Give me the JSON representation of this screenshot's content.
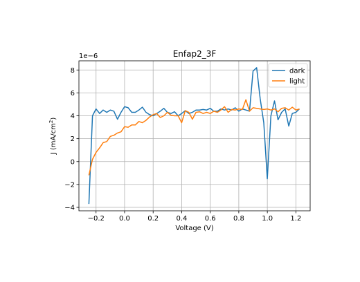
{
  "chart_data": {
    "type": "line",
    "title": "Enfap2_3F",
    "xlabel": "Voltage (V)",
    "ylabel_main": "J (mA/cm",
    "ylabel_sup": "2",
    "ylabel_close": ")",
    "offset_text": "1e−6",
    "xlim": [
      -0.32,
      1.3
    ],
    "ylim": [
      -4.3,
      8.8
    ],
    "xticks": [
      -0.2,
      0.0,
      0.2,
      0.4,
      0.6,
      0.8,
      1.0,
      1.2
    ],
    "xtick_labels": [
      "−0.2",
      "0.0",
      "0.2",
      "0.4",
      "0.6",
      "0.8",
      "1.0",
      "1.2"
    ],
    "yticks": [
      -4,
      -2,
      0,
      2,
      4,
      6,
      8
    ],
    "ytick_labels": [
      "−4",
      "−2",
      "0",
      "2",
      "4",
      "6",
      "8"
    ],
    "grid": true,
    "legend_position": "top-right",
    "series": [
      {
        "name": "dark",
        "color": "#1f77b4",
        "x": [
          -0.25,
          -0.225,
          -0.2,
          -0.175,
          -0.15,
          -0.125,
          -0.1,
          -0.075,
          -0.05,
          -0.025,
          0.0,
          0.025,
          0.05,
          0.075,
          0.1,
          0.125,
          0.15,
          0.175,
          0.2,
          0.225,
          0.25,
          0.275,
          0.3,
          0.325,
          0.35,
          0.375,
          0.4,
          0.425,
          0.45,
          0.475,
          0.5,
          0.525,
          0.55,
          0.575,
          0.6,
          0.625,
          0.65,
          0.675,
          0.7,
          0.725,
          0.75,
          0.775,
          0.8,
          0.825,
          0.85,
          0.875,
          0.9,
          0.925,
          0.95,
          0.975,
          1.0,
          1.025,
          1.05,
          1.075,
          1.1,
          1.125,
          1.15,
          1.175,
          1.2,
          1.225
        ],
        "y": [
          -3.7,
          4.0,
          4.6,
          4.2,
          4.5,
          4.3,
          4.5,
          4.4,
          3.7,
          4.3,
          4.8,
          4.7,
          4.3,
          4.3,
          4.5,
          4.75,
          4.3,
          4.1,
          4.0,
          4.2,
          4.4,
          4.65,
          4.3,
          4.2,
          4.35,
          4.0,
          4.2,
          4.45,
          4.2,
          4.3,
          4.5,
          4.5,
          4.55,
          4.5,
          4.65,
          4.4,
          4.4,
          4.6,
          4.5,
          4.6,
          4.5,
          4.7,
          4.4,
          4.6,
          4.5,
          4.4,
          7.9,
          8.2,
          5.5,
          3.4,
          -1.5,
          4.0,
          5.3,
          3.65,
          4.3,
          4.6,
          3.1,
          4.2,
          4.3,
          4.6
        ]
      },
      {
        "name": "light",
        "color": "#ff7f0e",
        "x": [
          -0.25,
          -0.225,
          -0.2,
          -0.175,
          -0.15,
          -0.125,
          -0.1,
          -0.075,
          -0.05,
          -0.025,
          0.0,
          0.025,
          0.05,
          0.075,
          0.1,
          0.125,
          0.15,
          0.175,
          0.2,
          0.225,
          0.25,
          0.275,
          0.3,
          0.325,
          0.35,
          0.375,
          0.4,
          0.425,
          0.45,
          0.475,
          0.5,
          0.525,
          0.55,
          0.575,
          0.6,
          0.625,
          0.65,
          0.675,
          0.7,
          0.725,
          0.75,
          0.775,
          0.8,
          0.825,
          0.85,
          0.875,
          0.9,
          0.925,
          0.95,
          0.975,
          1.0,
          1.025,
          1.05,
          1.075,
          1.1,
          1.125,
          1.15,
          1.175,
          1.2,
          1.225
        ],
        "y": [
          -1.2,
          0.2,
          0.8,
          1.2,
          1.65,
          1.75,
          2.2,
          2.3,
          2.5,
          2.6,
          3.05,
          3.0,
          3.2,
          3.2,
          3.5,
          3.4,
          3.6,
          3.9,
          4.1,
          4.2,
          3.85,
          4.0,
          4.3,
          4.05,
          4.0,
          4.0,
          3.4,
          4.45,
          4.3,
          3.7,
          4.3,
          4.35,
          4.2,
          4.3,
          4.2,
          4.4,
          4.3,
          4.5,
          4.8,
          4.3,
          4.55,
          4.5,
          4.6,
          4.55,
          5.4,
          4.4,
          4.7,
          4.65,
          4.6,
          4.55,
          4.6,
          4.5,
          4.6,
          4.35,
          4.65,
          4.7,
          4.5,
          4.75,
          4.5,
          4.6
        ]
      }
    ]
  }
}
